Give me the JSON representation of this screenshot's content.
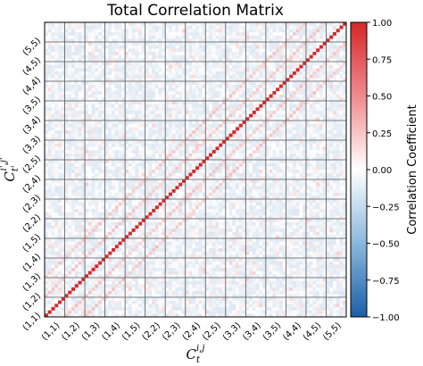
{
  "chart_data": {
    "type": "heatmap",
    "title": "Total Correlation Matrix",
    "xlabel": "C_t^{i,j}",
    "ylabel": "C_{t'}^{i',j'}",
    "xlabel_parts": {
      "base": "C",
      "sub": "t",
      "sup": "i,j"
    },
    "ylabel_parts": {
      "base": "C",
      "sub": "t'",
      "sup": "i',j'"
    },
    "categories": [
      "(1,1)",
      "(1,2)",
      "(1,3)",
      "(1,4)",
      "(1,5)",
      "(2,2)",
      "(2,3)",
      "(2,4)",
      "(2,5)",
      "(3,3)",
      "(3,4)",
      "(3,5)",
      "(4,4)",
      "(4,5)",
      "(5,5)"
    ],
    "cells_per_block": 6,
    "diagonal_value": 1.0,
    "off_diagonal_typical_range": [
      -0.15,
      0.25
    ],
    "subdiagonal_band_value": 0.3,
    "grid": true,
    "colorbar": {
      "label": "Correlation Coefficient",
      "range": [
        -1.0,
        1.0
      ],
      "ticks": [
        "1.00",
        "0.75",
        "0.50",
        "0.25",
        "0.00",
        "−0.25",
        "−0.50",
        "−0.75",
        "−1.00"
      ],
      "colors": {
        "low": "#2166ac",
        "mid": "#ffffff",
        "high": "#d62728"
      }
    }
  }
}
